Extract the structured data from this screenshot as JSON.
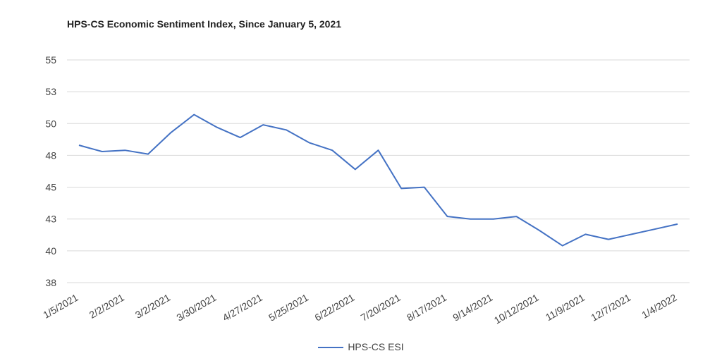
{
  "chart_data": {
    "type": "line",
    "title": "HPS-CS Economic Sentiment Index, Since January 5, 2021",
    "xlabel": "",
    "ylabel": "",
    "y_ticks": [
      "55",
      "53",
      "50",
      "48",
      "45",
      "43",
      "40",
      "38"
    ],
    "ylim": [
      37.5,
      55
    ],
    "x_tick_labels": [
      "1/5/2021",
      "2/2/2021",
      "3/2/2021",
      "3/30/2021",
      "4/27/2021",
      "5/25/2021",
      "6/22/2021",
      "7/20/2021",
      "8/17/2021",
      "9/14/2021",
      "10/12/2021",
      "11/9/2021",
      "12/7/2021",
      "1/4/2022"
    ],
    "grid": true,
    "legend_position": "bottom",
    "series": [
      {
        "name": "HPS-CS ESI",
        "color": "#4472c4",
        "x": [
          "1/5/2021",
          "1/19/2021",
          "2/2/2021",
          "2/16/2021",
          "3/2/2021",
          "3/16/2021",
          "3/30/2021",
          "4/13/2021",
          "4/27/2021",
          "5/11/2021",
          "5/25/2021",
          "6/8/2021",
          "6/22/2021",
          "7/6/2021",
          "7/20/2021",
          "8/3/2021",
          "8/17/2021",
          "8/31/2021",
          "9/14/2021",
          "9/28/2021",
          "10/12/2021",
          "10/26/2021",
          "11/9/2021",
          "11/23/2021",
          "12/7/2021",
          "12/21/2021",
          "1/4/2022"
        ],
        "values": [
          48.3,
          47.8,
          47.9,
          47.6,
          49.3,
          50.7,
          49.7,
          48.9,
          49.9,
          49.5,
          48.5,
          47.9,
          46.4,
          47.9,
          44.9,
          45.0,
          42.7,
          42.5,
          42.5,
          42.7,
          41.6,
          40.4,
          41.3,
          40.9,
          41.3,
          41.7,
          42.1
        ]
      }
    ]
  }
}
